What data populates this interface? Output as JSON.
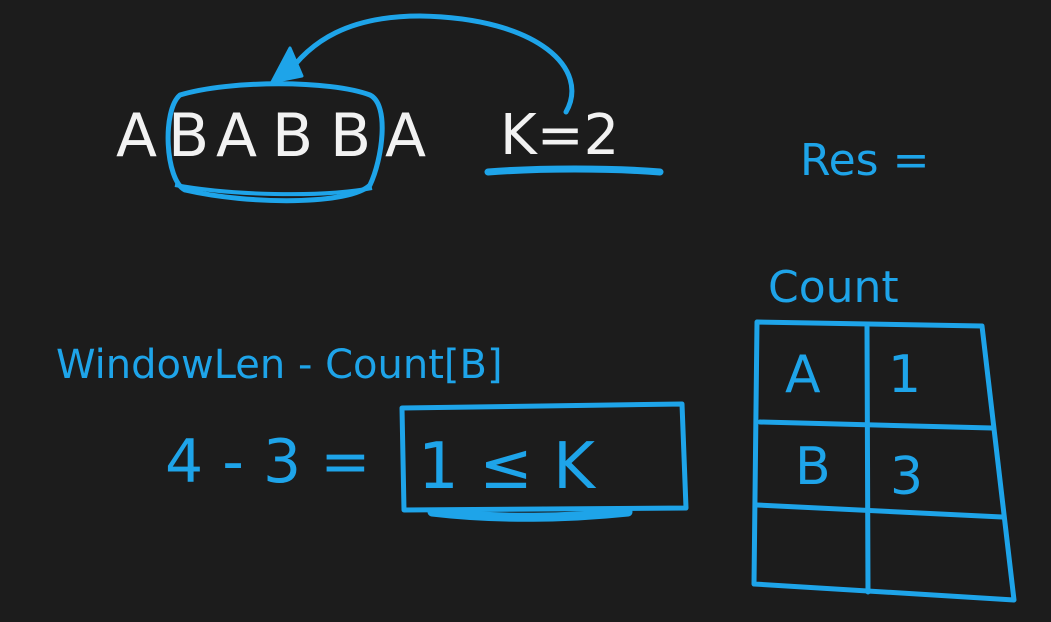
{
  "colors": {
    "background": "#1c1c1c",
    "ink_white": "#f2f2f2",
    "ink_blue": "#1ea4e9"
  },
  "string": {
    "chars": [
      "A",
      "B",
      "A",
      "B",
      "B",
      "A"
    ]
  },
  "k_label": "K=2",
  "res_label": "Res =",
  "formula": {
    "label": "WindowLen - Count[B]",
    "equation_lhs": "4 - 3 =",
    "boxed_result": "1 ≤ K"
  },
  "count_table": {
    "title": "Count",
    "rows": [
      {
        "key": "A",
        "value": "1"
      },
      {
        "key": "B",
        "value": "3"
      },
      {
        "key": "",
        "value": ""
      }
    ]
  }
}
